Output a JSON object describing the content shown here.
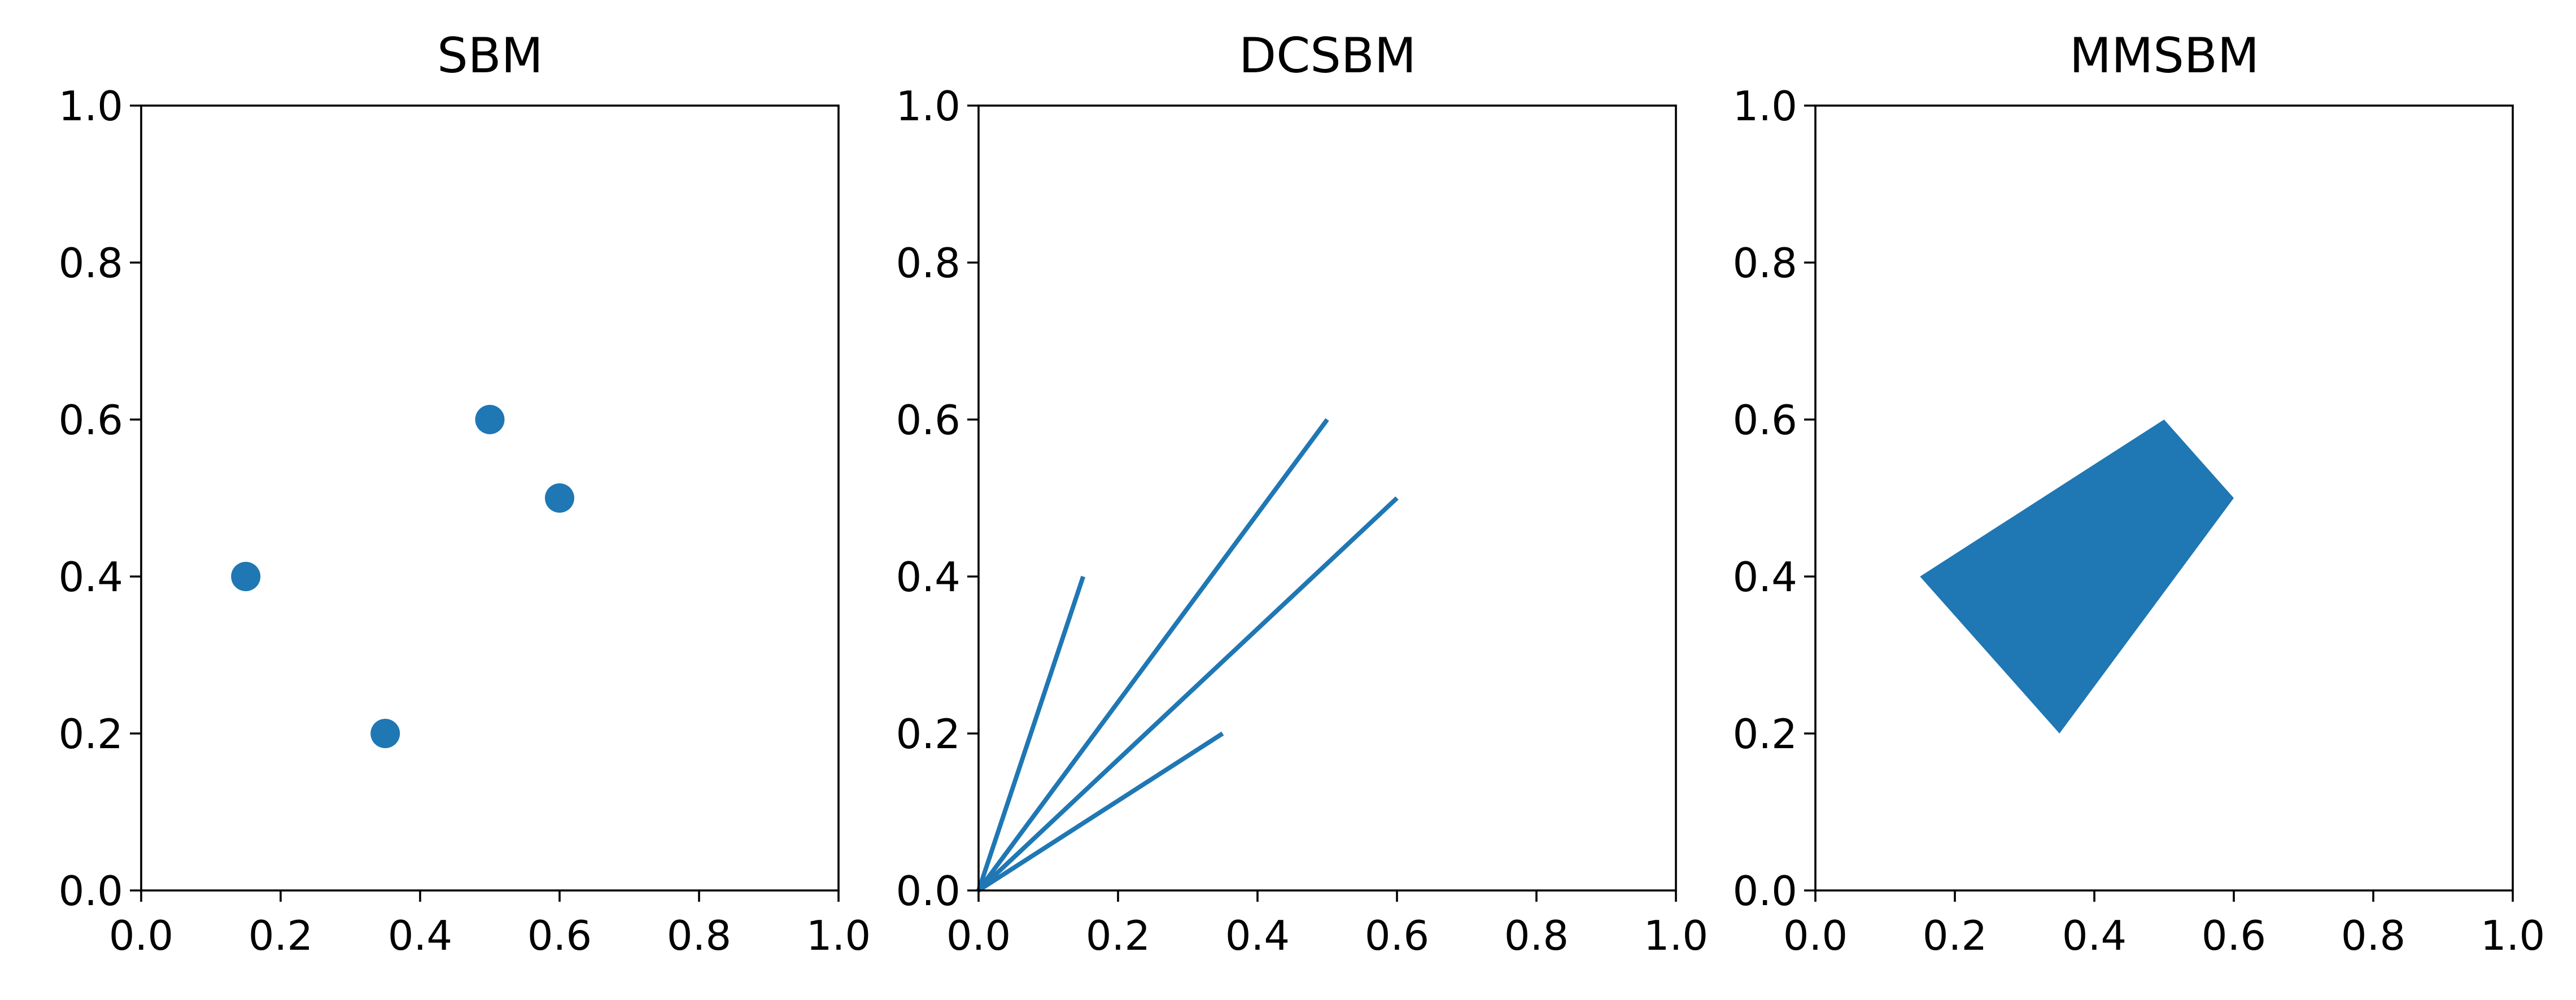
{
  "chart_data": [
    {
      "type": "scatter",
      "title": "SBM",
      "xlim": [
        0,
        1
      ],
      "ylim": [
        0,
        1
      ],
      "xticks": [
        "0.0",
        "0.2",
        "0.4",
        "0.6",
        "0.8",
        "1.0"
      ],
      "yticks": [
        "0.0",
        "0.2",
        "0.4",
        "0.6",
        "0.8",
        "1.0"
      ],
      "color": "#1f77b4",
      "points": [
        [
          0.15,
          0.4
        ],
        [
          0.35,
          0.2
        ],
        [
          0.5,
          0.6
        ],
        [
          0.6,
          0.5
        ]
      ],
      "grid": false
    },
    {
      "type": "line",
      "title": "DCSBM",
      "xlim": [
        0,
        1
      ],
      "ylim": [
        0,
        1
      ],
      "xticks": [
        "0.0",
        "0.2",
        "0.4",
        "0.6",
        "0.8",
        "1.0"
      ],
      "yticks": [
        "0.0",
        "0.2",
        "0.4",
        "0.6",
        "0.8",
        "1.0"
      ],
      "color": "#1f77b4",
      "origin": [
        0,
        0
      ],
      "endpoints": [
        [
          0.15,
          0.4
        ],
        [
          0.35,
          0.2
        ],
        [
          0.5,
          0.6
        ],
        [
          0.6,
          0.5
        ]
      ],
      "grid": false
    },
    {
      "type": "area",
      "title": "MMSBM",
      "xlim": [
        0,
        1
      ],
      "ylim": [
        0,
        1
      ],
      "xticks": [
        "0.0",
        "0.2",
        "0.4",
        "0.6",
        "0.8",
        "1.0"
      ],
      "yticks": [
        "0.0",
        "0.2",
        "0.4",
        "0.6",
        "0.8",
        "1.0"
      ],
      "color": "#1f77b4",
      "polygon": [
        [
          0.15,
          0.4
        ],
        [
          0.5,
          0.6
        ],
        [
          0.6,
          0.5
        ],
        [
          0.35,
          0.2
        ]
      ],
      "grid": false
    }
  ]
}
